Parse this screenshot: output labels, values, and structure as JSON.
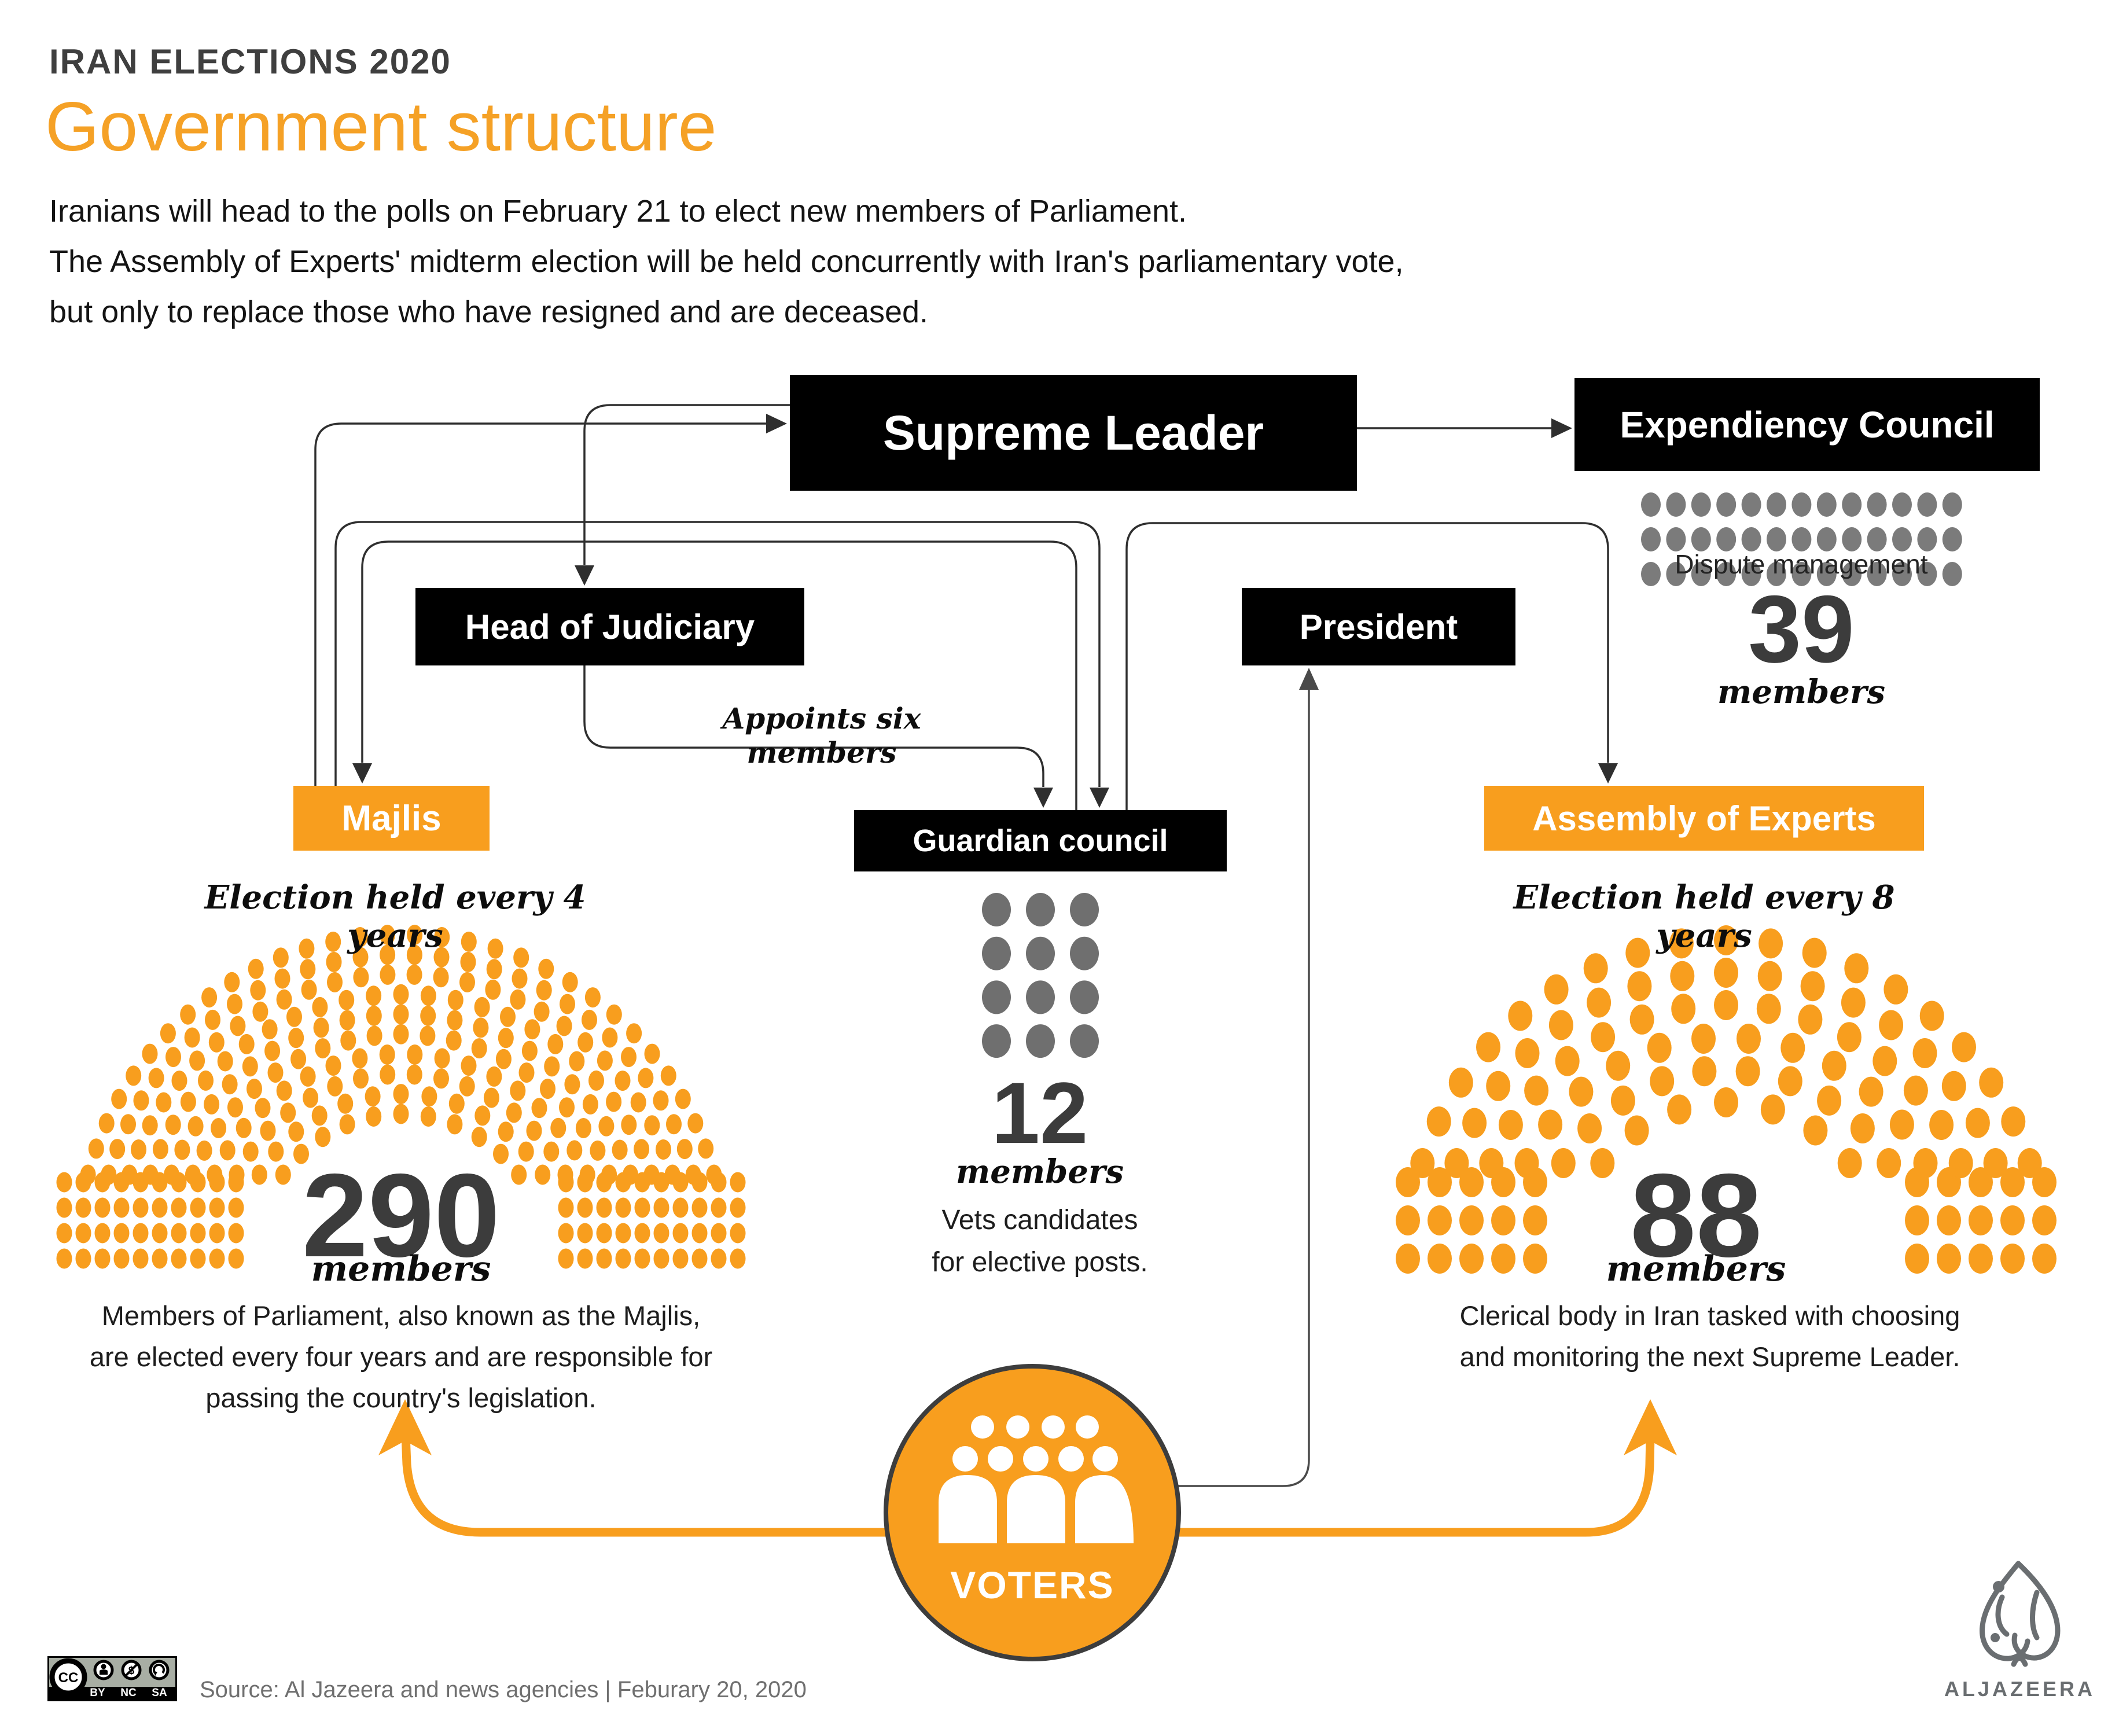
{
  "colors": {
    "orange": "#F89E1E",
    "charcoal": "#3C3C3C",
    "gray_dot": "#7B7B7B",
    "gray_dot_dark": "#6F6F6F",
    "line": "#2F2F2F",
    "source_text": "#6F6F6F",
    "logo_gray": "#6A6E71"
  },
  "header": {
    "kicker": "IRAN ELECTIONS 2020",
    "title": "Government structure",
    "intro_lines": [
      "Iranians will head to the polls on February 21 to elect new members of Parliament.",
      "The Assembly of Experts' midterm election will be held concurrently with Iran's parliamentary vote,",
      "but only to replace those who have resigned and are deceased."
    ]
  },
  "boxes": {
    "supreme_leader": "Supreme Leader",
    "expediency_council": "Expendiency Council",
    "head_of_judiciary": "Head of Judiciary",
    "president": "President",
    "guardian_council": "Guardian council",
    "majlis": "Majlis",
    "assembly_of_experts": "Assembly of Experts"
  },
  "labels": {
    "appoints_six": "Appoints six members",
    "election_4": "Election held every 4 years",
    "election_8": "Election held every 8 years",
    "voters": "VOTERS"
  },
  "expediency": {
    "caption": "Dispute management",
    "count": "39",
    "unit": "members"
  },
  "guardian": {
    "count": "12",
    "unit": "members",
    "desc_lines": [
      "Vets candidates",
      "for elective posts."
    ]
  },
  "majlis": {
    "count": "290",
    "unit": "members",
    "desc_lines": [
      "Members of Parliament, also known as the Majlis,",
      "are elected every four years and are responsible for",
      "passing the country's legislation."
    ]
  },
  "assembly": {
    "count": "88",
    "unit": "members",
    "desc_lines": [
      "Clerical body in Iran tasked with choosing",
      "and monitoring the next Supreme Leader."
    ]
  },
  "footer": {
    "source": "Source: Al Jazeera and news agencies  |  Feburary 20, 2020",
    "cc": [
      "BY",
      "NC",
      "SA"
    ],
    "logo_text": "ALJAZEERA"
  },
  "chart_data": [
    {
      "type": "pictogram-grid",
      "entity": "Expendiency Council",
      "rows": 3,
      "cols": 13,
      "total": 39,
      "note": "Dispute management"
    },
    {
      "type": "pictogram-grid",
      "entity": "Guardian council",
      "rows": 4,
      "cols": 3,
      "total": 12,
      "note": "Vets candidates for elective posts."
    },
    {
      "type": "parliament-arch",
      "entity": "Majlis",
      "total": 290,
      "election_cycle_years": 4
    },
    {
      "type": "parliament-arch",
      "entity": "Assembly of Experts",
      "total": 88,
      "election_cycle_years": 8
    }
  ]
}
